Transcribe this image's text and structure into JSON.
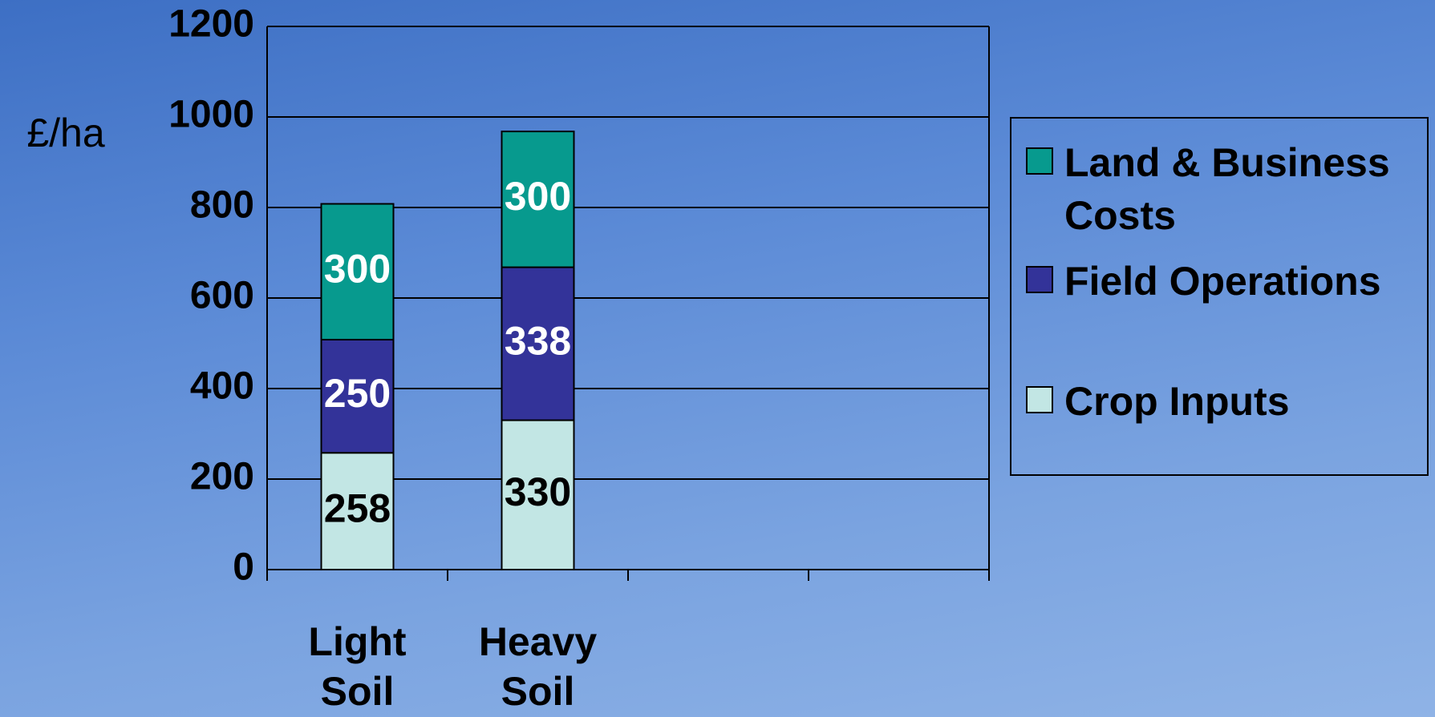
{
  "chart_data": {
    "type": "stacked_bar",
    "y_label": "£/ha",
    "categories": [
      "Light Soil",
      "Heavy Soil",
      null,
      null
    ],
    "series": [
      {
        "name": "Crop Inputs",
        "color": "#c2e6e4",
        "values": [
          258,
          330,
          null,
          null
        ]
      },
      {
        "name": "Field Operations",
        "color": "#333399",
        "values": [
          250,
          338,
          null,
          null
        ]
      },
      {
        "name": "Land & Business Costs",
        "color": "#079a8e",
        "values": [
          300,
          300,
          null,
          null
        ]
      }
    ],
    "ylim": [
      0,
      1200
    ],
    "yticks": [
      0,
      200,
      400,
      600,
      800,
      1000,
      1200
    ],
    "grid": true,
    "legend": "right"
  }
}
